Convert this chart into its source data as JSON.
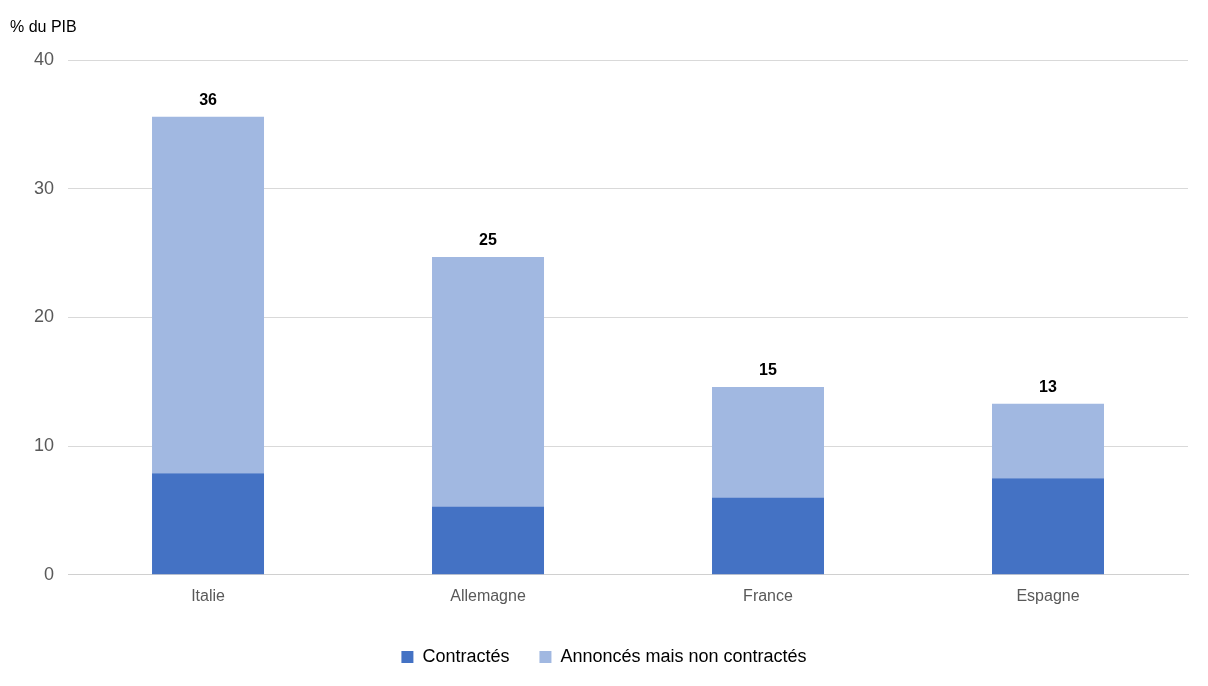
{
  "chart_data": {
    "type": "bar",
    "stacked": true,
    "ylabel": "% du PIB",
    "categories": [
      "Italie",
      "Allemagne",
      "France",
      "Espagne"
    ],
    "series": [
      {
        "name": "Contractés",
        "color": "#4472c4",
        "values": [
          7.9,
          5.3,
          6.0,
          7.5
        ]
      },
      {
        "name": "Annoncés mais non contractés",
        "color": "#a1b8e1",
        "values": [
          27.7,
          19.4,
          8.6,
          5.8
        ]
      }
    ],
    "totals": [
      "36",
      "25",
      "15",
      "13"
    ],
    "ylim": [
      0,
      40
    ],
    "yticks": [
      0,
      10,
      20,
      30,
      40
    ],
    "grid": "y",
    "legend": "bottom"
  }
}
